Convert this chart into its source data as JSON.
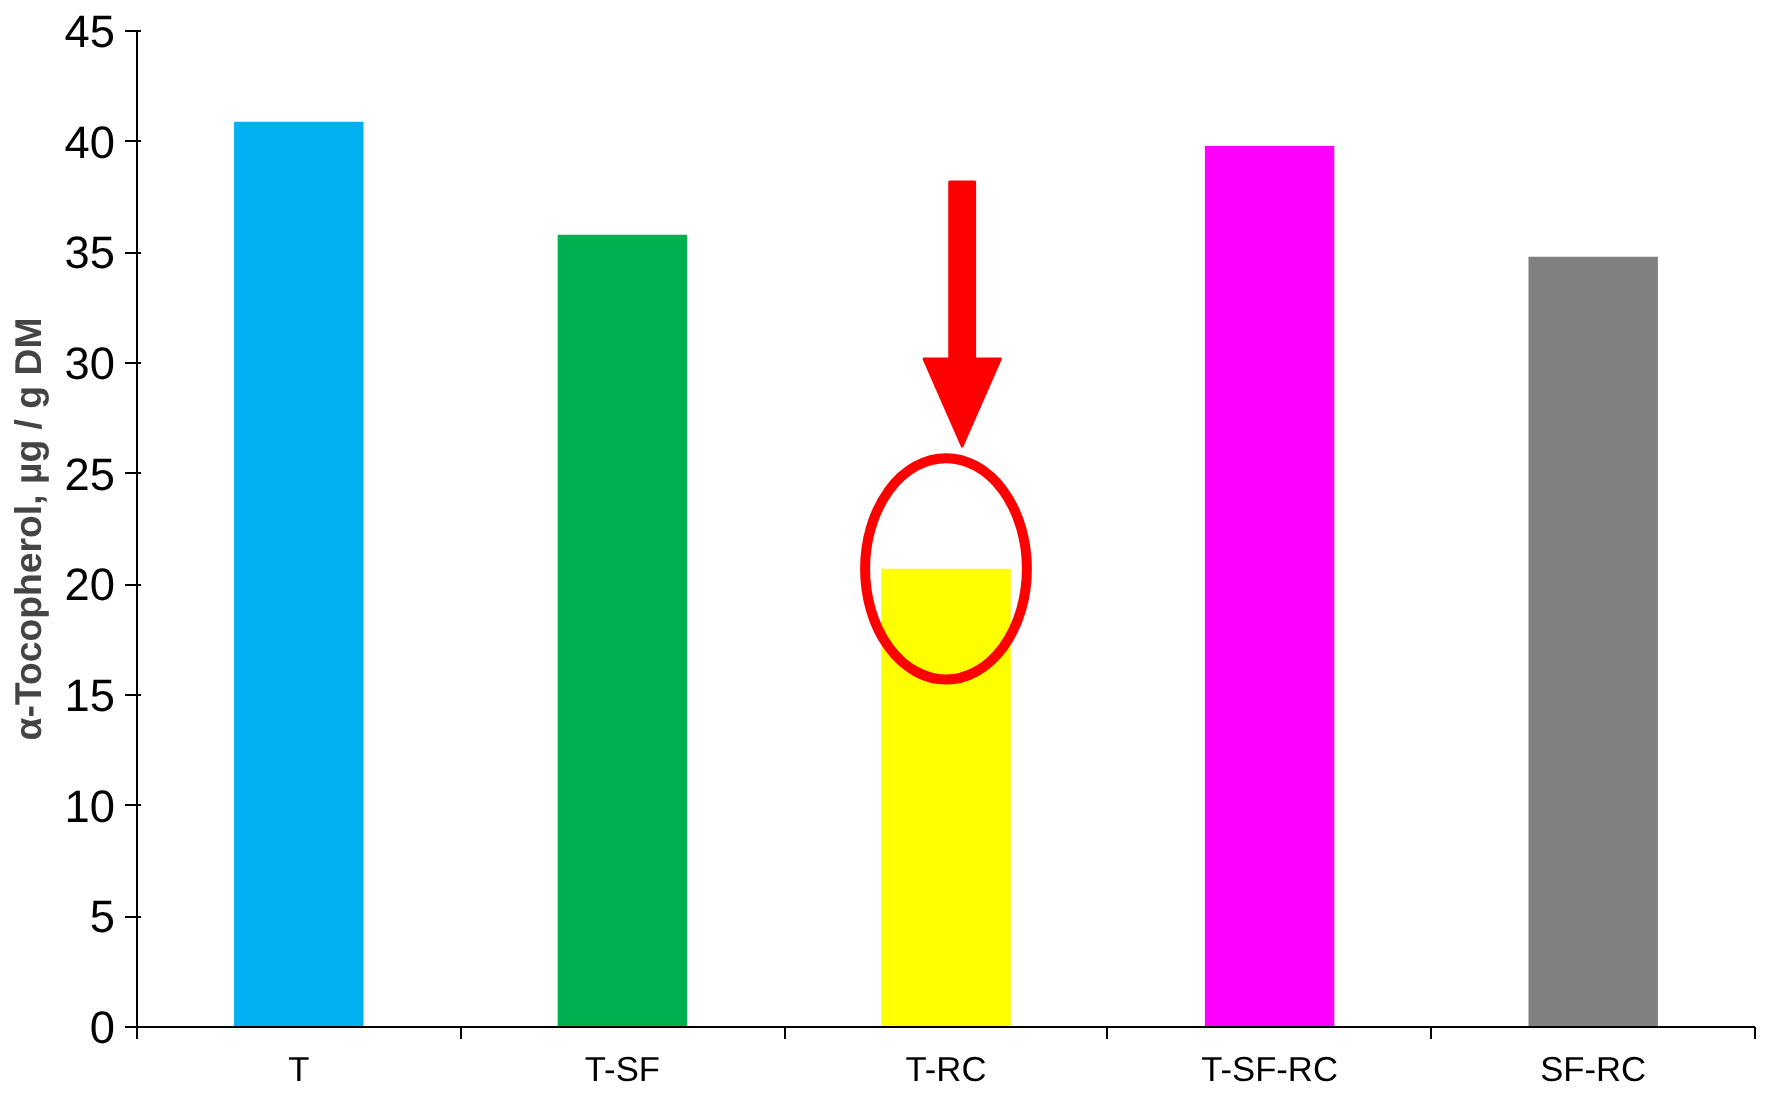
{
  "chart_data": {
    "type": "bar",
    "ylabel": "α-Tocopherol, µg / g DM",
    "categories": [
      "T",
      "T-SF",
      "T-RC",
      "T-SF-RC",
      "SF-RC"
    ],
    "values": [
      40.9,
      35.8,
      20.7,
      39.8,
      34.8
    ],
    "colors": [
      "#00b0f0",
      "#00b050",
      "#ffff00",
      "#ff00ff",
      "#808080"
    ],
    "ylim": [
      0,
      45
    ],
    "yticks": [
      0,
      5,
      10,
      15,
      20,
      25,
      30,
      35,
      40,
      45
    ],
    "grid": false
  }
}
